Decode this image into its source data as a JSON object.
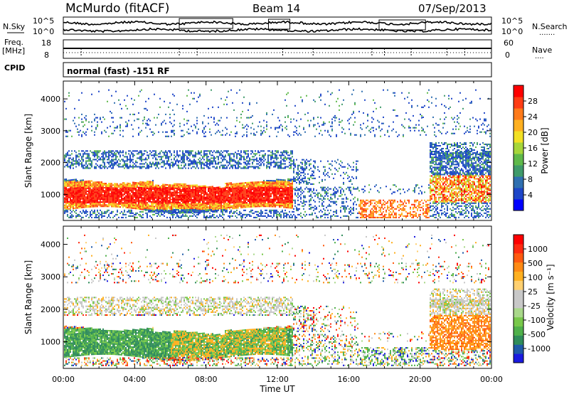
{
  "chart_data": {
    "type": "heatmap",
    "header": {
      "station": "McMurdo (fitACF)",
      "beam": "Beam 14",
      "date": "07/Sep/2013",
      "left_label_nsky": "N.Sky",
      "left_label_freq": "Freq.",
      "left_label_mhz": "[MHz]",
      "left_label_cpid": "CPID",
      "right_label_nsearch": "N.Search",
      "right_label_nave": "Nave",
      "noise_ticks_left": [
        "10^5",
        "10^0"
      ],
      "noise_ticks_right": [
        "10^5",
        "10^0"
      ],
      "freq_ticks": [
        "18",
        "8"
      ],
      "nave_ticks": [
        "60",
        "0"
      ],
      "cpid_text": "normal (fast) -151 RF"
    },
    "x_axis": {
      "label": "Time UT",
      "ticks": [
        "00:00",
        "04:00",
        "08:00",
        "12:00",
        "16:00",
        "20:00",
        "00:00"
      ],
      "range_hours": [
        0,
        24
      ]
    },
    "y_axis": {
      "label": "Slant Range [km]",
      "ticks": [
        1000,
        2000,
        3000,
        4000
      ],
      "range_km": [
        180,
        4560
      ]
    },
    "panels": [
      {
        "name": "power",
        "colorbar_label": "Power [dB]",
        "colorbar_ticks": [
          "28",
          "24",
          "20",
          "16",
          "12",
          "8",
          "4"
        ],
        "colorbar_colors": [
          "#0000ff",
          "#1e46c8",
          "#2f6fb0",
          "#3f9a6a",
          "#5fb94a",
          "#a6d63a",
          "#f2e024",
          "#ffb020",
          "#ff7a1a",
          "#ff3c14",
          "#ff0000"
        ]
      },
      {
        "name": "velocity",
        "colorbar_label": "Velocity [m s⁻¹]",
        "colorbar_ticks": [
          "1000",
          "500",
          "100",
          "25",
          "-25",
          "-100",
          "-500",
          "-1000"
        ],
        "colorbar_colors": [
          "#1a1ae0",
          "#1f5aa8",
          "#2f8c5a",
          "#4fb04a",
          "#78c84a",
          "#a9d88a",
          "#c8c8c8",
          "#c8c8c8",
          "#ffd070",
          "#ffb020",
          "#ff8a14",
          "#ff5a10",
          "#ff2a10",
          "#ff0000"
        ]
      }
    ]
  }
}
